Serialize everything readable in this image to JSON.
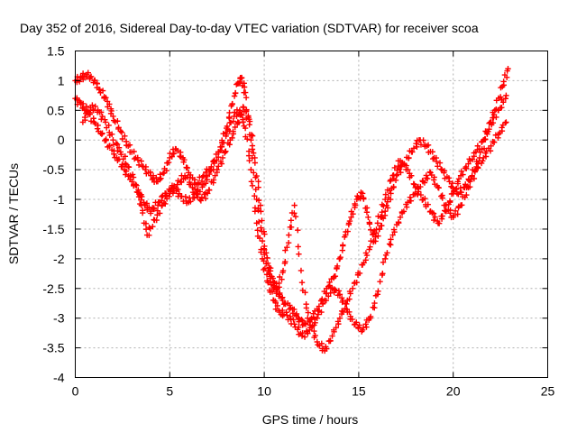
{
  "chart_data": {
    "type": "scatter",
    "title": "Day 352 of 2016, Sidereal Day-to-day VTEC variation (SDTVAR) for receiver scoa",
    "xlabel": "GPS time / hours",
    "ylabel": "SDTVAR / TECUs",
    "xlim": [
      0,
      25
    ],
    "ylim": [
      -4,
      1.5
    ],
    "xticks": [
      "0",
      "5",
      "10",
      "15",
      "20",
      "25"
    ],
    "yticks": [
      "1.5",
      "1",
      "0.5",
      "0",
      "-0.5",
      "-1",
      "-1.5",
      "-2",
      "-2.5",
      "-3",
      "-3.5",
      "-4"
    ],
    "grid": true,
    "marker": "+",
    "color": "#ff0000",
    "series": [
      {
        "x": [
          0.0,
          0.3,
          0.6,
          1.0,
          1.3,
          1.7,
          2.0,
          2.4,
          2.8,
          3.2,
          3.6,
          4.0,
          4.3,
          4.7,
          5.0,
          5.3,
          5.7,
          6.0,
          6.4,
          6.8,
          7.2,
          7.6,
          8.0,
          8.3,
          8.6,
          8.8,
          9.0,
          9.3,
          9.6,
          9.9,
          10.2,
          10.5,
          10.8,
          11.1,
          11.5,
          11.8,
          12.1,
          12.5,
          12.9,
          13.3,
          13.7,
          14.0,
          14.3,
          14.6,
          14.9,
          15.2,
          15.5,
          15.8,
          16.1,
          16.4,
          16.7,
          17.0,
          17.4,
          17.8,
          18.2,
          18.6,
          19.0,
          19.4,
          19.8,
          20.2,
          20.6,
          21.0,
          21.4,
          21.8,
          22.2,
          22.6,
          22.9
        ],
        "y": [
          1.0,
          1.05,
          1.1,
          1.0,
          0.85,
          0.65,
          0.4,
          0.15,
          -0.1,
          -0.3,
          -0.45,
          -0.6,
          -0.7,
          -0.55,
          -0.3,
          -0.15,
          -0.3,
          -0.55,
          -0.75,
          -0.6,
          -0.45,
          -0.2,
          0.2,
          0.6,
          0.95,
          1.05,
          0.8,
          0.0,
          -1.0,
          -1.7,
          -2.2,
          -2.5,
          -2.6,
          -2.75,
          -2.85,
          -3.0,
          -3.1,
          -3.0,
          -2.8,
          -2.5,
          -2.3,
          -2.0,
          -1.6,
          -1.3,
          -1.0,
          -0.9,
          -1.3,
          -1.7,
          -1.5,
          -1.2,
          -0.9,
          -0.6,
          -0.4,
          -0.2,
          0.0,
          -0.1,
          -0.3,
          -0.5,
          -0.7,
          -0.9,
          -0.8,
          -0.6,
          -0.3,
          0.1,
          0.5,
          0.9,
          1.2
        ]
      },
      {
        "x": [
          0.0,
          0.3,
          0.6,
          1.0,
          1.4,
          1.8,
          2.2,
          2.6,
          3.0,
          3.4,
          3.7,
          4.0,
          4.4,
          4.8,
          5.2,
          5.6,
          6.0,
          6.4,
          6.8,
          7.2,
          7.6,
          8.0,
          8.4,
          8.7,
          9.0,
          9.3,
          9.6,
          9.9,
          10.2,
          10.5,
          10.8,
          11.2,
          11.6,
          12.0,
          12.4,
          12.8,
          13.2,
          13.6,
          14.0,
          14.4,
          14.8,
          15.2,
          15.6,
          16.0,
          16.4,
          16.8,
          17.2,
          17.6,
          18.0,
          18.4,
          18.8,
          19.2,
          19.6,
          20.0,
          20.4,
          20.8,
          21.2,
          21.6,
          22.0,
          22.4,
          22.8
        ],
        "y": [
          0.7,
          0.6,
          0.5,
          0.3,
          0.1,
          -0.1,
          -0.3,
          -0.5,
          -0.7,
          -0.9,
          -1.1,
          -1.2,
          -1.05,
          -0.9,
          -0.8,
          -0.95,
          -1.05,
          -0.9,
          -0.75,
          -0.5,
          -0.2,
          0.1,
          0.4,
          0.5,
          0.2,
          -0.5,
          -1.4,
          -2.0,
          -2.4,
          -2.7,
          -2.9,
          -2.95,
          -3.1,
          -3.3,
          -3.2,
          -3.0,
          -2.7,
          -2.5,
          -2.6,
          -2.9,
          -3.1,
          -3.2,
          -3.0,
          -2.6,
          -2.0,
          -1.6,
          -1.3,
          -1.05,
          -0.9,
          -0.7,
          -0.55,
          -0.8,
          -1.1,
          -1.3,
          -1.1,
          -0.8,
          -0.5,
          -0.3,
          -0.1,
          0.1,
          0.3
        ]
      },
      {
        "x": [
          0.4,
          0.8,
          1.2,
          1.6,
          2.0,
          2.4,
          2.8,
          3.2,
          3.5,
          3.8,
          4.2,
          4.6,
          5.0,
          5.4,
          5.8,
          6.2,
          6.6,
          7.0,
          7.4,
          7.8,
          8.2,
          8.6,
          8.9,
          9.2,
          9.5,
          9.8,
          10.1,
          10.4,
          10.7,
          11.0,
          11.3,
          11.6,
          12.0,
          12.4,
          12.8,
          13.2,
          13.6,
          14.0,
          14.4,
          14.8,
          15.2,
          15.6,
          16.0,
          16.4,
          16.8,
          17.2,
          17.6,
          18.0,
          18.4,
          18.8,
          19.2,
          19.6,
          20.0,
          20.4,
          20.8,
          21.2,
          21.6,
          22.0,
          22.4,
          22.8
        ],
        "y": [
          0.3,
          0.55,
          0.5,
          0.3,
          0.0,
          -0.2,
          -0.45,
          -0.75,
          -1.1,
          -1.6,
          -1.35,
          -1.1,
          -0.9,
          -0.75,
          -0.6,
          -0.8,
          -1.0,
          -0.9,
          -0.6,
          -0.3,
          0.0,
          0.3,
          0.55,
          0.35,
          -0.3,
          -1.1,
          -1.9,
          -2.3,
          -2.5,
          -2.2,
          -1.6,
          -1.1,
          -2.4,
          -3.05,
          -3.4,
          -3.55,
          -3.3,
          -3.0,
          -2.7,
          -2.4,
          -2.1,
          -1.8,
          -1.4,
          -1.0,
          -0.6,
          -0.35,
          -0.5,
          -0.8,
          -1.0,
          -1.2,
          -1.4,
          -1.2,
          -0.9,
          -0.6,
          -0.4,
          -0.2,
          0.0,
          0.3,
          0.5,
          0.75
        ]
      }
    ]
  }
}
